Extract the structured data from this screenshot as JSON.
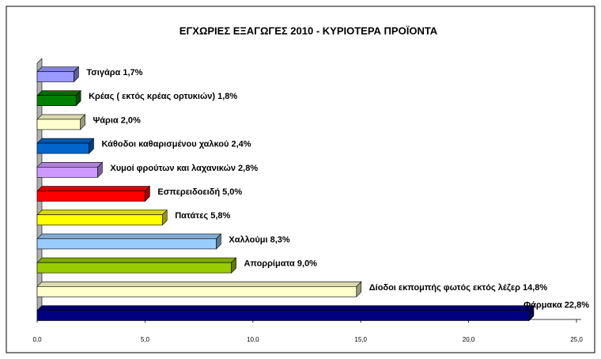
{
  "chart_data": {
    "type": "bar",
    "orientation": "horizontal",
    "title": "ΕΓΧΩΡΙΕΣ ΕΞΑΓΩΓΕΣ 2010 - ΚΥΡΙΟΤΕΡΑ ΠΡΟΪΟΝΤΑ",
    "categories": [
      "Τσιγάρα",
      "Κρέας ( εκτός κρέας ορτυκιών)",
      "Ψάρια",
      "Κάθοδοι καθαρισμένου χαλκού",
      "Χυμοί φρούτων και λαχανικών",
      "Εσπερειδοειδή",
      "Πατάτες",
      "Χαλλούμι",
      "Απορρίματα",
      "Δίοδοι εκπομπής φωτός εκτός λέζερ",
      "Φάρμακα"
    ],
    "values": [
      1.7,
      1.8,
      2.0,
      2.4,
      2.8,
      5.0,
      5.8,
      8.3,
      9.0,
      14.8,
      22.8
    ],
    "value_labels": [
      "1,7%",
      "1,8%",
      "2,0%",
      "2,4%",
      "2,8%",
      "5,0%",
      "5,8%",
      "8,3%",
      "9,0%",
      "14,8%",
      "22,8%"
    ],
    "colors": [
      "#9999ff",
      "#008000",
      "#ffffcc",
      "#0066cc",
      "#cc99ff",
      "#ff0000",
      "#ffff00",
      "#99ccff",
      "#99cc00",
      "#ffffcc",
      "#000080"
    ],
    "xlim": [
      0,
      25
    ],
    "xticks": [
      {
        "value": 0,
        "label": "0,0"
      },
      {
        "value": 5,
        "label": "5,0"
      },
      {
        "value": 10,
        "label": "10,0"
      },
      {
        "value": 15,
        "label": "15,0"
      },
      {
        "value": 20,
        "label": "20,0"
      },
      {
        "value": 25,
        "label": "25,0"
      }
    ]
  }
}
